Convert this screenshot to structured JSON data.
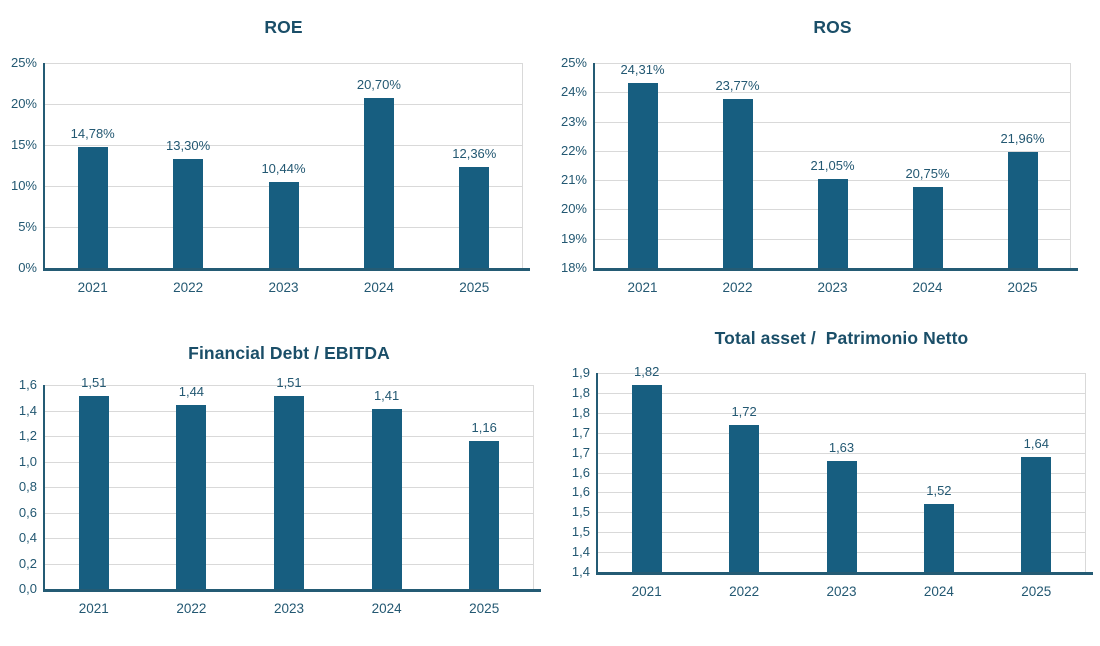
{
  "colors": {
    "bar": "#175E80",
    "title_text": "#1A4E68",
    "label_text": "#235872",
    "axis": "#245B74",
    "gridline": "#D9D9D9",
    "background": "#FFFFFF"
  },
  "chart_data": [
    {
      "type": "bar",
      "title": "ROE",
      "categories": [
        "2021",
        "2022",
        "2023",
        "2024",
        "2025"
      ],
      "values": [
        14.78,
        13.3,
        10.44,
        20.7,
        12.36
      ],
      "data_labels": [
        "14,78%",
        "13,30%",
        "10,44%",
        "20,70%",
        "12,36%"
      ],
      "xlabel": "",
      "ylabel": "",
      "ylim": [
        0,
        25
      ],
      "tick_values": [
        25,
        20,
        15,
        10,
        5,
        0
      ],
      "tick_labels": [
        "25%",
        "20%",
        "15%",
        "10%",
        "5%",
        "0%"
      ],
      "grid": true,
      "legend": "none"
    },
    {
      "type": "bar",
      "title": "ROS",
      "categories": [
        "2021",
        "2022",
        "2023",
        "2024",
        "2025"
      ],
      "values": [
        24.31,
        23.77,
        21.05,
        20.75,
        21.96
      ],
      "data_labels": [
        "24,31%",
        "23,77%",
        "21,05%",
        "20,75%",
        "21,96%"
      ],
      "xlabel": "",
      "ylabel": "",
      "ylim": [
        18,
        25
      ],
      "tick_values": [
        25,
        24,
        23,
        22,
        21,
        20,
        19,
        18
      ],
      "tick_labels": [
        "25%",
        "24%",
        "23%",
        "22%",
        "21%",
        "20%",
        "19%",
        "18%"
      ],
      "grid": true,
      "legend": "none"
    },
    {
      "type": "bar",
      "title": "Financial Debt / EBITDA",
      "categories": [
        "2021",
        "2022",
        "2023",
        "2024",
        "2025"
      ],
      "values": [
        1.51,
        1.44,
        1.51,
        1.41,
        1.16
      ],
      "data_labels": [
        "1,51",
        "1,44",
        "1,51",
        "1,41",
        "1,16"
      ],
      "xlabel": "",
      "ylabel": "",
      "ylim": [
        0,
        1.6
      ],
      "tick_values": [
        1.6,
        1.4,
        1.2,
        1.0,
        0.8,
        0.6,
        0.4,
        0.2,
        0
      ],
      "tick_labels": [
        "1,6",
        "1,4",
        "1,2",
        "1,0",
        "0,8",
        "0,6",
        "0,4",
        "0,2",
        "0,0"
      ],
      "grid": true,
      "legend": "none"
    },
    {
      "type": "bar",
      "title": "Total asset /  Patrimonio Netto",
      "categories": [
        "2021",
        "2022",
        "2023",
        "2024",
        "2025"
      ],
      "values": [
        1.82,
        1.72,
        1.63,
        1.52,
        1.64
      ],
      "data_labels": [
        "1,82",
        "1,72",
        "1,63",
        "1,52",
        "1,64"
      ],
      "xlabel": "",
      "ylabel": "",
      "ylim": [
        1.35,
        1.85
      ],
      "tick_values": [
        1.85,
        1.8,
        1.75,
        1.7,
        1.65,
        1.6,
        1.55,
        1.5,
        1.45,
        1.4,
        1.35
      ],
      "tick_labels": [
        "1,9",
        "1,8",
        "1,8",
        "1,7",
        "1,7",
        "1,6",
        "1,6",
        "1,5",
        "1,5",
        "1,4",
        "1,4"
      ],
      "grid": true,
      "legend": "none"
    }
  ]
}
